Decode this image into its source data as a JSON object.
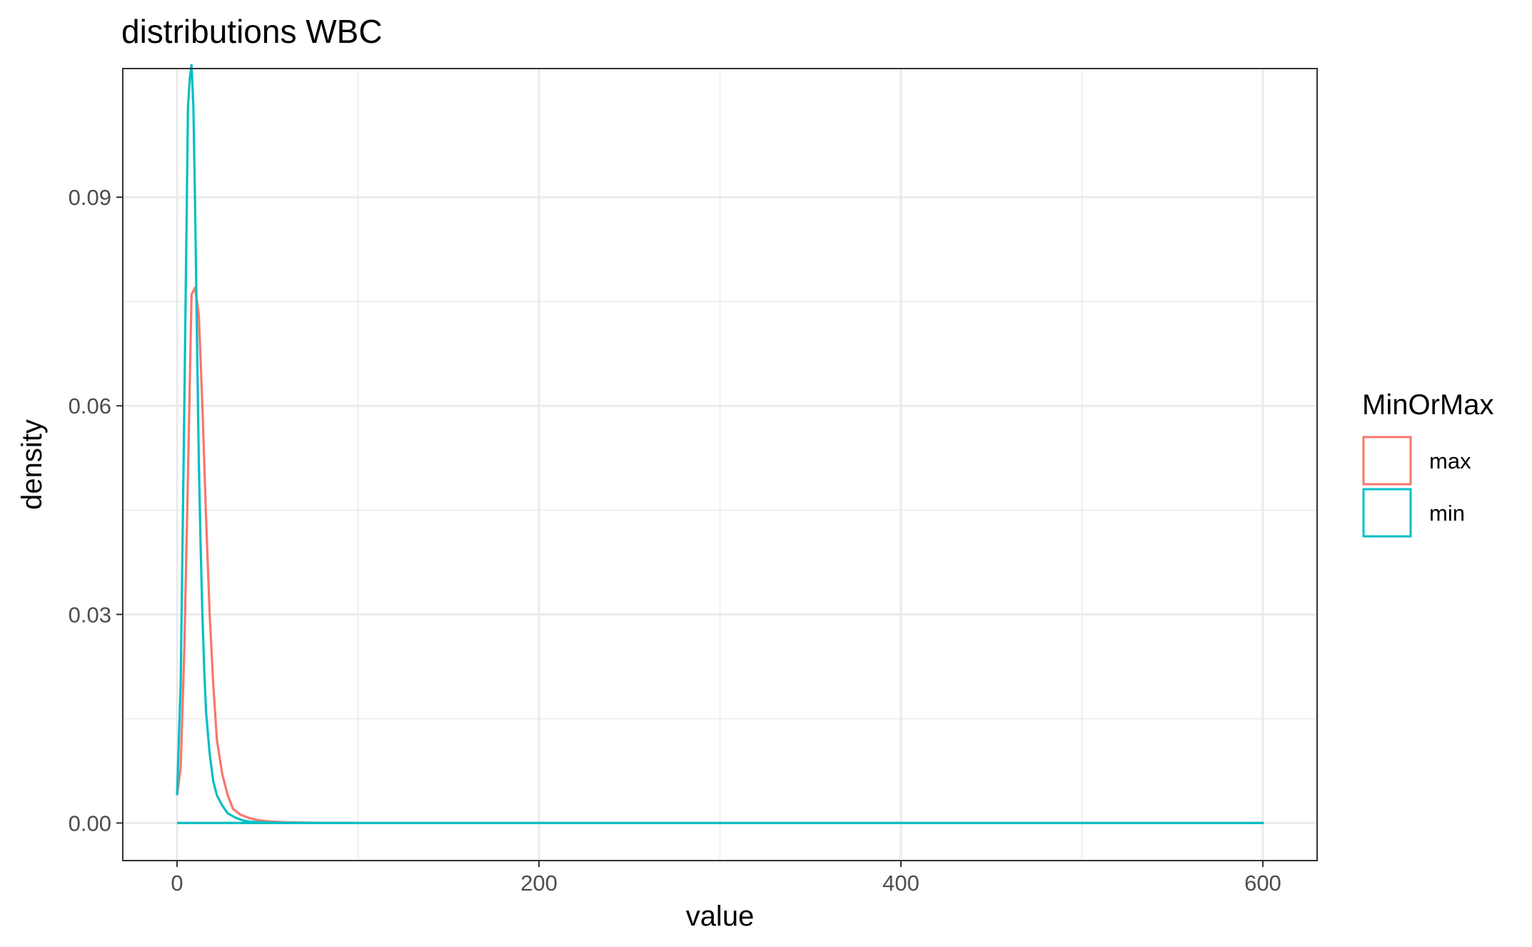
{
  "chart_data": {
    "type": "line",
    "title": "distributions WBC",
    "xlabel": "value",
    "ylabel": "density",
    "xlim": [
      -30,
      630
    ],
    "ylim": [
      -0.0054,
      0.1085
    ],
    "xticks": [
      0,
      200,
      400,
      600
    ],
    "xtick_labels": [
      "0",
      "200",
      "400",
      "600"
    ],
    "yticks": [
      0.0,
      0.03,
      0.06,
      0.09
    ],
    "ytick_labels": [
      "0.00",
      "0.03",
      "0.06",
      "0.09"
    ],
    "x_minor": [
      100,
      300,
      500
    ],
    "y_minor": [
      0.015,
      0.045,
      0.075
    ],
    "grid": true,
    "legend": {
      "title": "MinOrMax",
      "position": "right"
    },
    "series": [
      {
        "name": "max",
        "color": "#F8766D",
        "x": [
          0,
          2,
          4,
          6,
          8,
          10,
          12,
          14,
          16,
          18,
          20,
          22,
          25,
          28,
          31,
          35,
          40,
          45,
          50,
          60,
          70,
          80,
          100,
          150,
          200,
          300,
          400,
          500,
          600,
          0
        ],
        "y": [
          0.004,
          0.008,
          0.025,
          0.05,
          0.076,
          0.077,
          0.073,
          0.06,
          0.044,
          0.03,
          0.02,
          0.012,
          0.007,
          0.004,
          0.002,
          0.0012,
          0.0007,
          0.0004,
          0.00025,
          0.00012,
          6e-05,
          3e-05,
          1e-05,
          0.0,
          0.0,
          0.0,
          0.0,
          0.0,
          0.0,
          0.0
        ]
      },
      {
        "name": "min",
        "color": "#00BFC4",
        "x": [
          0,
          2,
          4,
          6,
          7,
          8,
          9,
          10,
          11,
          12,
          13,
          14,
          15,
          16,
          18,
          20,
          22,
          25,
          28,
          32,
          36,
          40,
          50,
          60,
          80,
          100,
          150,
          200,
          300,
          400,
          500,
          600,
          0
        ],
        "y": [
          0.004,
          0.02,
          0.06,
          0.103,
          0.107,
          0.109,
          0.103,
          0.088,
          0.07,
          0.052,
          0.04,
          0.03,
          0.022,
          0.016,
          0.01,
          0.006,
          0.004,
          0.0025,
          0.0014,
          0.0008,
          0.0004,
          0.0002,
          7e-05,
          3e-05,
          1e-05,
          0.0,
          0.0,
          0.0,
          0.0,
          0.0,
          0.0,
          0.0,
          0.0
        ]
      }
    ]
  }
}
